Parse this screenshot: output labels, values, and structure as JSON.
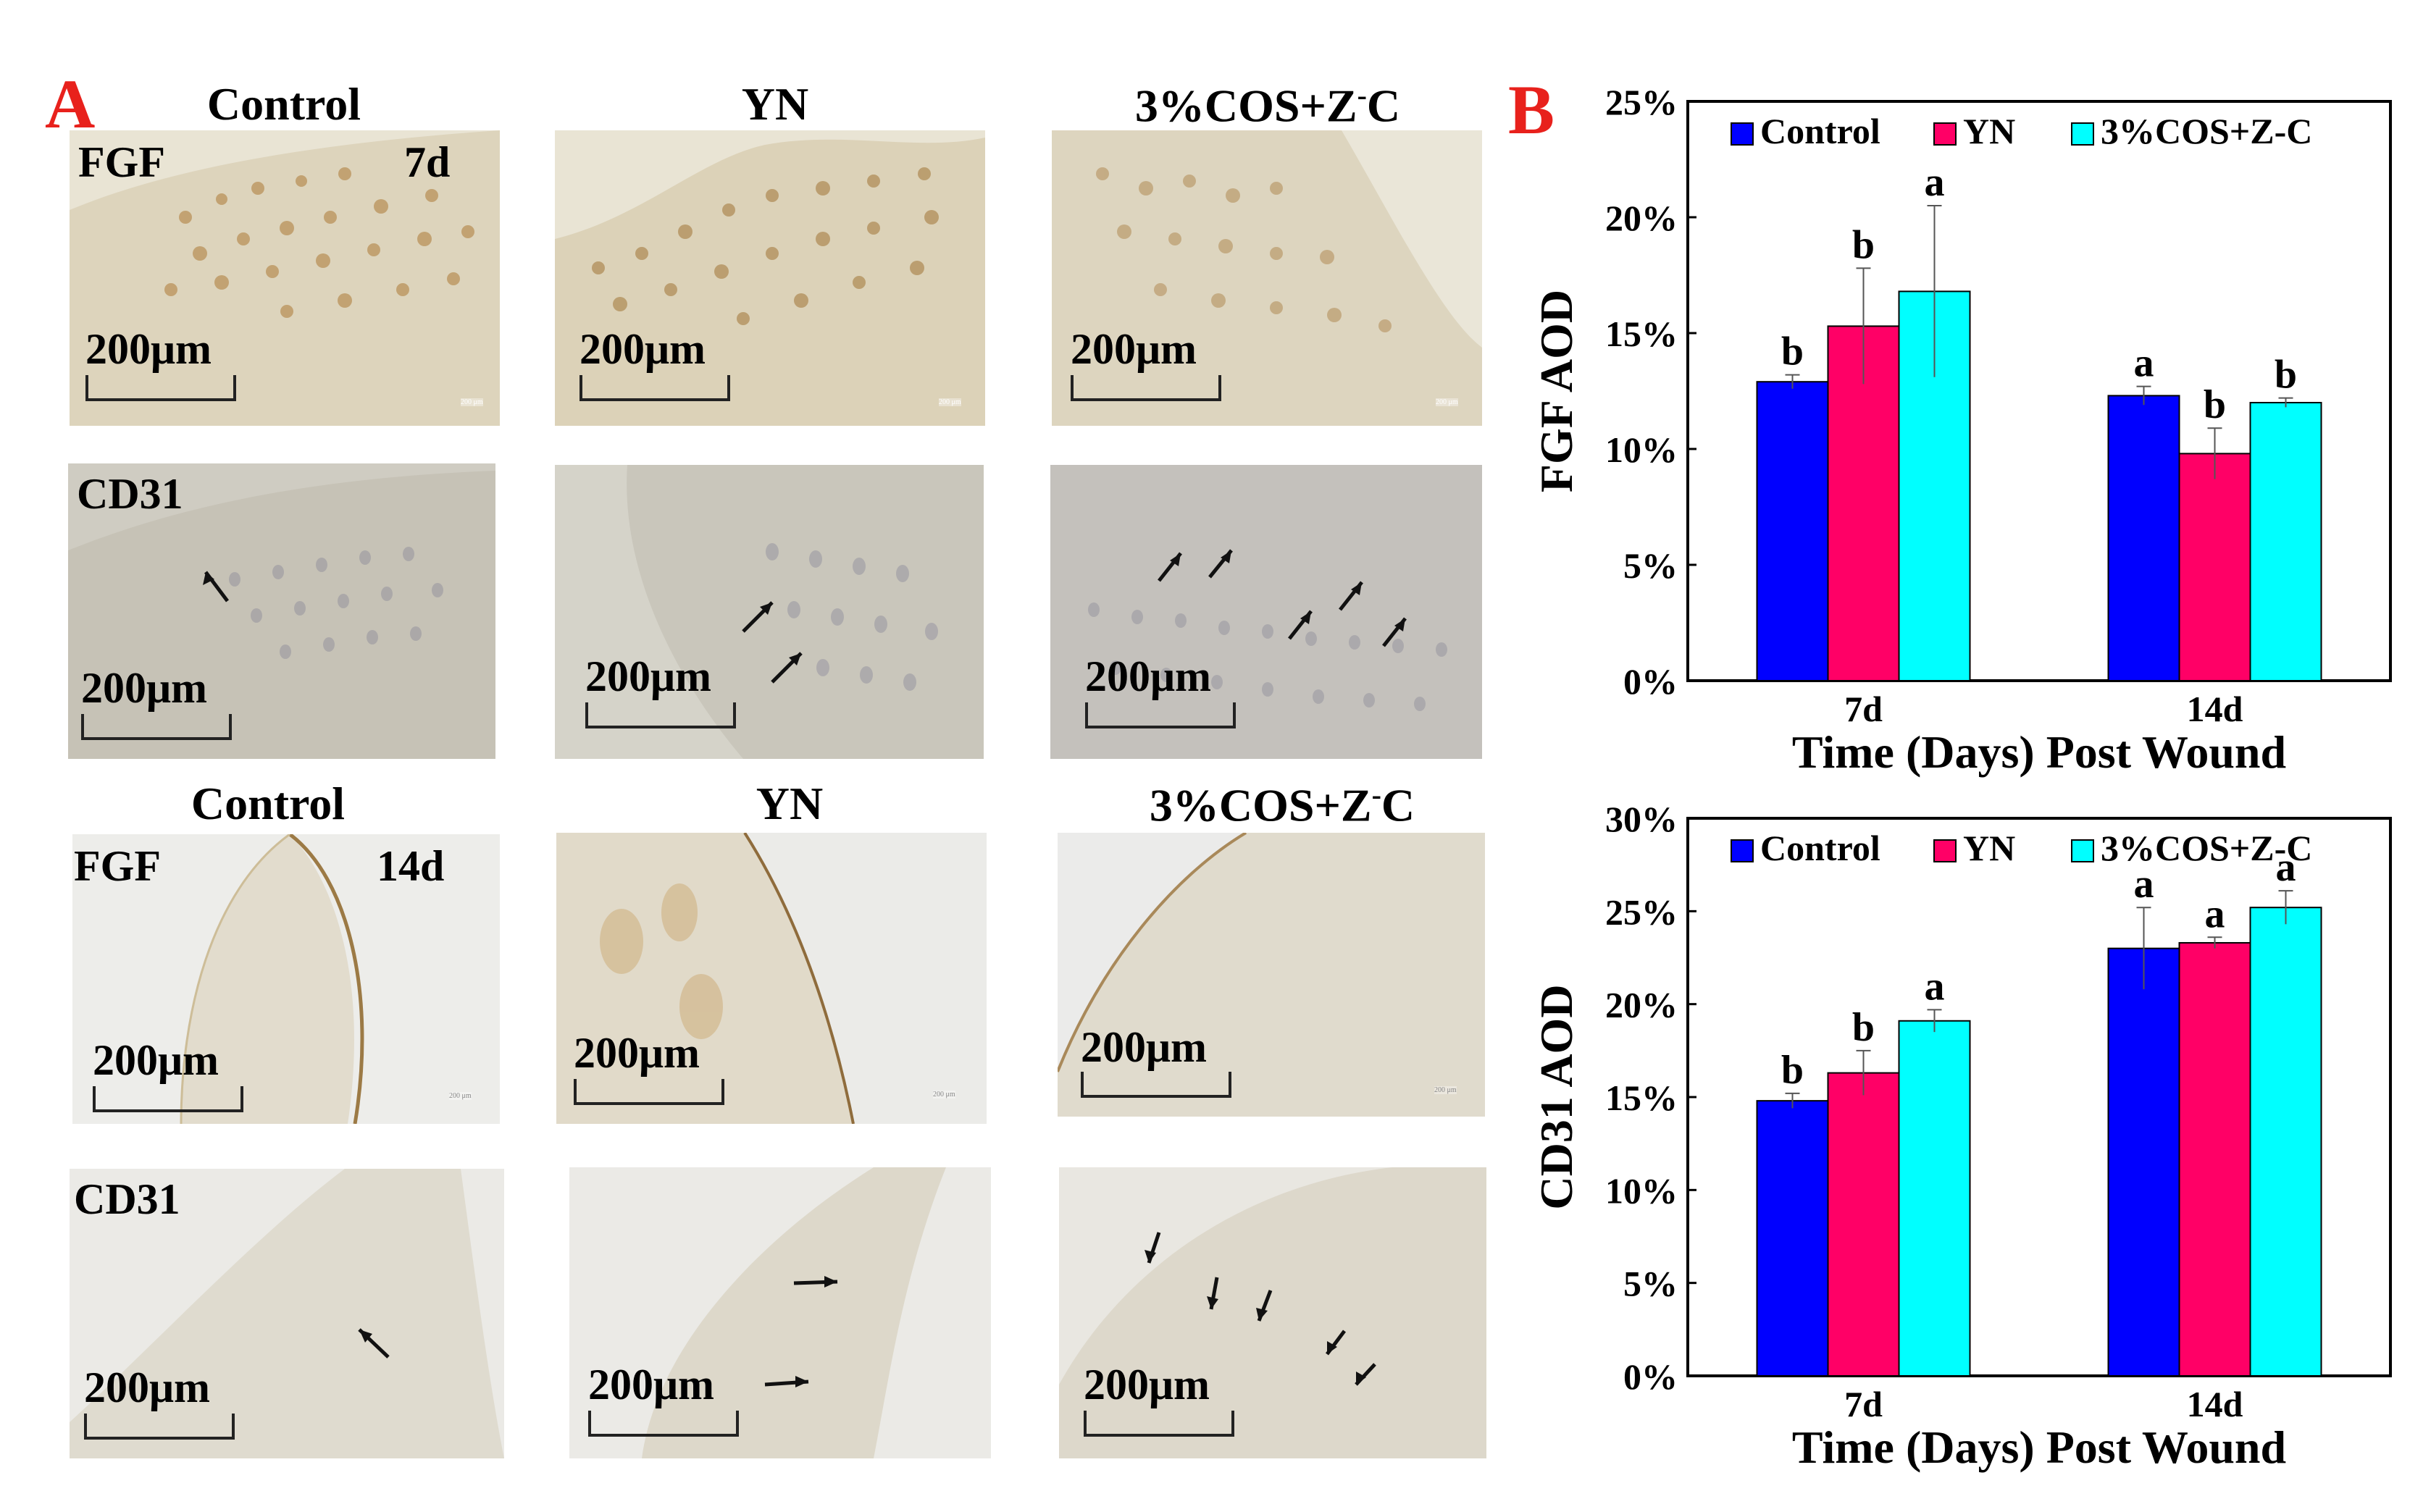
{
  "panel_a": {
    "letter": "A",
    "top_groups": [
      "Control",
      "YN",
      "3%COS+Z"
    ],
    "bottom_groups": [
      "Control",
      "YN",
      "3%COS+Z"
    ],
    "superscript_minus": "-",
    "suffix_c": "C",
    "stain_fgf": "FGF",
    "stain_cd31": "CD31",
    "day_7": "7d",
    "day_14": "14d",
    "scale_text": "200μm",
    "tiny_scale_text": "200 μm"
  },
  "panel_b": {
    "letter": "B"
  },
  "chart_data": [
    {
      "type": "bar",
      "title": "",
      "categories": [
        "7d",
        "14d"
      ],
      "series": [
        {
          "name": "Control",
          "color": "#0000ff",
          "values": [
            12.9,
            12.3
          ],
          "errors": [
            0.3,
            0.4
          ],
          "letters": [
            "b",
            "a"
          ]
        },
        {
          "name": "YN",
          "color": "#ff0066",
          "values": [
            15.3,
            9.8
          ],
          "errors": [
            2.5,
            1.1
          ],
          "letters": [
            "b",
            "b"
          ]
        },
        {
          "name": "3%COS+Z-C",
          "color": "#00ffff",
          "values": [
            16.8,
            12.0
          ],
          "errors": [
            3.7,
            0.2
          ],
          "letters": [
            "a",
            "b"
          ]
        }
      ],
      "ylabel": "FGF AOD",
      "xlabel": "Time (Days) Post Wound",
      "ylim": [
        0,
        25
      ],
      "yticks": [
        "0%",
        "5%",
        "10%",
        "15%",
        "20%",
        "25%"
      ],
      "legend_position": "top"
    },
    {
      "type": "bar",
      "title": "",
      "categories": [
        "7d",
        "14d"
      ],
      "series": [
        {
          "name": "Control",
          "color": "#0000ff",
          "values": [
            14.8,
            23.0
          ],
          "errors": [
            0.4,
            2.2
          ],
          "letters": [
            "b",
            "a"
          ]
        },
        {
          "name": "YN",
          "color": "#ff0066",
          "values": [
            16.3,
            23.3
          ],
          "errors": [
            1.2,
            0.3
          ],
          "letters": [
            "b",
            "a"
          ]
        },
        {
          "name": "3%COS+Z-C",
          "color": "#00ffff",
          "values": [
            19.1,
            25.2
          ],
          "errors": [
            0.6,
            0.9
          ],
          "letters": [
            "a",
            "a"
          ]
        }
      ],
      "ylabel": "CD31 AOD",
      "xlabel": "Time (Days) Post Wound",
      "ylim": [
        0,
        30
      ],
      "yticks": [
        "0%",
        "5%",
        "10%",
        "15%",
        "20%",
        "25%",
        "30%"
      ],
      "legend_position": "top"
    }
  ]
}
